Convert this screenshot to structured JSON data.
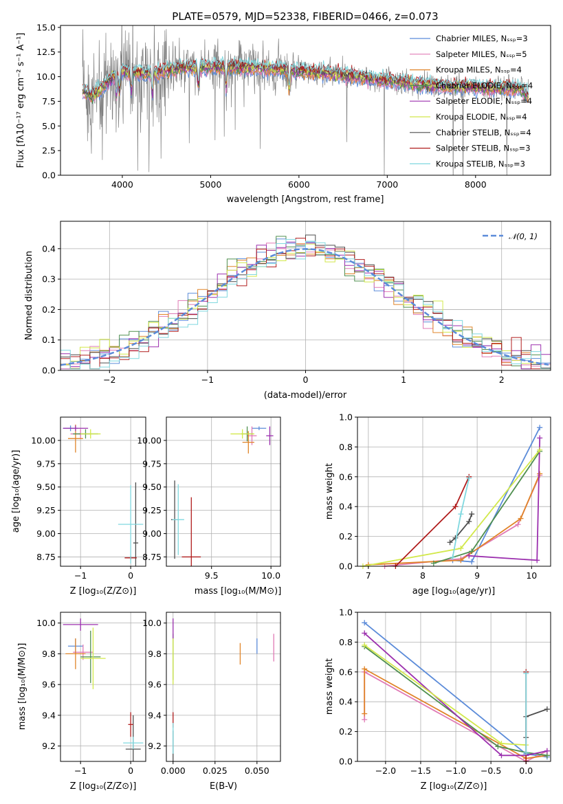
{
  "palette": {
    "chabrier_miles": "#5b8bd9",
    "salpeter_miles": "#e07ab5",
    "kroupa_miles": "#e08428",
    "chabrier_elodie": "#4f8f4f",
    "salpeter_elodie": "#9b2fae",
    "kroupa_elodie": "#d2e84a",
    "chabrier_stelib": "#4d4d4d",
    "salpeter_stelib": "#b01c1c",
    "kroupa_stelib": "#7fd8df",
    "gaussian": "#5b8bd9"
  },
  "chart_data": [
    {
      "id": "spectrum",
      "type": "line",
      "title": "PLATE=0579, MJD=52338, FIBERID=0466, z=0.073",
      "xlabel": "wavelength [Angstrom, rest frame]",
      "ylabel": "Flux [fλ10⁻¹⁷ erg cm⁻² s⁻¹ A⁻¹]",
      "xlim": [
        3300,
        8850
      ],
      "ylim": [
        0,
        15.2
      ],
      "xticks": [
        "4000",
        "5000",
        "6000",
        "7000",
        "8000"
      ],
      "yticks": [
        "0.0",
        "2.5",
        "5.0",
        "7.5",
        "10.0",
        "12.5",
        "15.0"
      ],
      "grid": false,
      "legend_position": "top-right",
      "legend": [
        "Chabrier MILES, Nₛₛₚ=3",
        "Salpeter MILES, Nₛₛₚ=5",
        "Kroupa MILES, Nₛₛₚ=4",
        "Chabrier ELODIE, Nₛₛₚ=4",
        "Salpeter ELODIE, Nₛₛₚ=4",
        "Kroupa ELODIE, Nₛₛₚ=4",
        "Chabrier STELIB, Nₛₛₚ=4",
        "Salpeter STELIB, Nₛₛₚ=3",
        "Kroupa STELIB, Nₛₛₚ=3"
      ],
      "continuum": [
        [
          3550,
          8.6
        ],
        [
          3650,
          8.0
        ],
        [
          3800,
          9.2
        ],
        [
          4000,
          10.6
        ],
        [
          4300,
          10.3
        ],
        [
          4700,
          10.9
        ],
        [
          5100,
          11.0
        ],
        [
          5500,
          10.9
        ],
        [
          6000,
          10.6
        ],
        [
          6500,
          10.2
        ],
        [
          7000,
          9.6
        ],
        [
          7500,
          9.1
        ],
        [
          8000,
          8.9
        ],
        [
          8500,
          8.8
        ],
        [
          8600,
          8.0
        ]
      ],
      "absorption_lines": [
        3934,
        3969,
        4102,
        4340,
        4861,
        5175,
        5890
      ]
    },
    {
      "id": "residuals",
      "type": "line",
      "xlabel": "(data-model)/error",
      "ylabel": "Normed distribution",
      "xlim": [
        -2.5,
        2.5
      ],
      "ylim": [
        0,
        0.49
      ],
      "xticks": [
        "−2",
        "−1",
        "0",
        "1",
        "2"
      ],
      "yticks": [
        "0.0",
        "0.1",
        "0.2",
        "0.3",
        "0.4"
      ],
      "grid": true,
      "legend_position": "top-right",
      "legend": [
        "𝒩(0, 1)"
      ],
      "gaussian": {
        "mean": 0,
        "sigma": 1
      }
    },
    {
      "id": "age_vs_Z",
      "type": "scatter",
      "xlabel": "Z [log₁₀(Z/Z⊙)]",
      "ylabel": "age  [log₁₀(age/yr)]",
      "xlim": [
        -1.4,
        0.3
      ],
      "ylim": [
        8.65,
        10.25
      ],
      "xticks": [
        "−1",
        "0"
      ],
      "yticks": [
        "8.75",
        "9.00",
        "9.25",
        "9.50",
        "9.75",
        "10.00"
      ],
      "grid": true,
      "points": [
        {
          "c": "chabrier_miles",
          "x": -1.2,
          "y": 10.13,
          "xe": 0.15,
          "ye": 0.03
        },
        {
          "c": "salpeter_miles",
          "x": -1.0,
          "y": 10.07,
          "xe": 0.2,
          "ye": 0.05
        },
        {
          "c": "kroupa_miles",
          "x": -1.1,
          "y": 10.02,
          "xe": 0.15,
          "ye": 0.15
        },
        {
          "c": "chabrier_elodie",
          "x": -0.9,
          "y": 10.07,
          "xe": 0.25,
          "ye": 0.05
        },
        {
          "c": "salpeter_elodie",
          "x": -1.1,
          "y": 10.13,
          "xe": 0.25,
          "ye": 0.03
        },
        {
          "c": "kroupa_elodie",
          "x": -0.8,
          "y": 10.07,
          "xe": 0.2,
          "ye": 0.05
        },
        {
          "c": "chabrier_stelib",
          "x": 0.1,
          "y": 8.9,
          "xe": 0.05,
          "ye": 0.65
        },
        {
          "c": "salpeter_stelib",
          "x": 0.0,
          "y": 8.74,
          "xe": 0.12,
          "ye": 0.02
        },
        {
          "c": "kroupa_stelib",
          "x": 0.0,
          "y": 9.1,
          "xe": 0.25,
          "ye": 0.42
        }
      ]
    },
    {
      "id": "age_vs_mass",
      "type": "scatter",
      "xlabel": "mass [log₁₀(M/M⊙)]",
      "ylabel": "",
      "xlim": [
        9.12,
        10.08
      ],
      "ylim": [
        8.65,
        10.25
      ],
      "xticks": [
        "9.5",
        "10.0"
      ],
      "yticks": [
        "8.75",
        "9.00",
        "9.25",
        "9.50",
        "9.75",
        "10.00"
      ],
      "grid": true,
      "points": [
        {
          "c": "chabrier_miles",
          "x": 9.9,
          "y": 10.13,
          "xe": 0.06,
          "ye": 0.02
        },
        {
          "c": "salpeter_miles",
          "x": 9.84,
          "y": 10.05,
          "xe": 0.04,
          "ye": 0.1
        },
        {
          "c": "kroupa_miles",
          "x": 9.81,
          "y": 9.98,
          "xe": 0.05,
          "ye": 0.12
        },
        {
          "c": "chabrier_elodie",
          "x": 9.8,
          "y": 10.07,
          "xe": 0.05,
          "ye": 0.08
        },
        {
          "c": "salpeter_elodie",
          "x": 9.99,
          "y": 10.05,
          "xe": 0.03,
          "ye": 0.1
        },
        {
          "c": "kroupa_elodie",
          "x": 9.76,
          "y": 10.07,
          "xe": 0.1,
          "ye": 0.05
        },
        {
          "c": "chabrier_stelib",
          "x": 9.19,
          "y": 9.15,
          "xe": 0.03,
          "ye": 0.42
        },
        {
          "c": "salpeter_stelib",
          "x": 9.33,
          "y": 8.75,
          "xe": 0.08,
          "ye": 0.64
        },
        {
          "c": "kroupa_stelib",
          "x": 9.22,
          "y": 9.15,
          "xe": 0.05,
          "ye": 0.38
        }
      ]
    },
    {
      "id": "mass_weight_vs_age",
      "type": "line",
      "xlabel": "age  [log₁₀(age/yr)]",
      "ylabel": "mass weight",
      "xlim": [
        6.8,
        10.35
      ],
      "ylim": [
        0,
        1
      ],
      "xticks": [
        "7",
        "8",
        "9",
        "10"
      ],
      "yticks": [
        "0.0",
        "0.2",
        "0.4",
        "0.6",
        "0.8",
        "1.0"
      ],
      "grid": true,
      "series": [
        {
          "c": "chabrier_miles",
          "x": [
            8.55,
            8.9,
            10.15
          ],
          "y": [
            0.04,
            0.03,
            0.93
          ]
        },
        {
          "c": "salpeter_miles",
          "x": [
            7.3,
            8.7,
            9.75,
            10.15
          ],
          "y": [
            0.0,
            0.05,
            0.28,
            0.61
          ]
        },
        {
          "c": "kroupa_miles",
          "x": [
            7.0,
            8.7,
            9.8,
            10.15
          ],
          "y": [
            0.01,
            0.04,
            0.32,
            0.62
          ]
        },
        {
          "c": "chabrier_elodie",
          "x": [
            8.2,
            8.9,
            10.15
          ],
          "y": [
            0.02,
            0.1,
            0.77
          ]
        },
        {
          "c": "salpeter_elodie",
          "x": [
            8.85,
            10.1,
            10.15
          ],
          "y": [
            0.07,
            0.04,
            0.86
          ]
        },
        {
          "c": "kroupa_elodie",
          "x": [
            6.9,
            8.7,
            10.15
          ],
          "y": [
            0.0,
            0.12,
            0.78
          ]
        },
        {
          "c": "chabrier_stelib",
          "x": [
            8.5,
            8.6,
            8.85,
            8.9
          ],
          "y": [
            0.16,
            0.19,
            0.3,
            0.35
          ]
        },
        {
          "c": "salpeter_stelib",
          "x": [
            7.5,
            8.6,
            8.85
          ],
          "y": [
            0.0,
            0.4,
            0.6
          ]
        },
        {
          "c": "kroupa_stelib",
          "x": [
            8.55,
            8.7,
            8.85
          ],
          "y": [
            0.06,
            0.35,
            0.59
          ]
        }
      ]
    },
    {
      "id": "mass_vs_Z",
      "type": "scatter",
      "xlabel": "Z [log₁₀(Z/Z⊙)]",
      "ylabel": "mass [log₁₀(M/M⊙)]",
      "xlim": [
        -1.4,
        0.3
      ],
      "ylim": [
        9.1,
        10.07
      ],
      "xticks": [
        "−1",
        "0"
      ],
      "yticks": [
        "9.2",
        "9.4",
        "9.6",
        "9.8",
        "10.0"
      ],
      "grid": true,
      "points": [
        {
          "c": "chabrier_miles",
          "x": -1.1,
          "y": 9.85,
          "xe": 0.15,
          "ye": 0.05
        },
        {
          "c": "salpeter_miles",
          "x": -0.95,
          "y": 9.81,
          "xe": 0.2,
          "ye": 0.05
        },
        {
          "c": "kroupa_miles",
          "x": -1.1,
          "y": 9.8,
          "xe": 0.2,
          "ye": 0.1
        },
        {
          "c": "chabrier_elodie",
          "x": -0.8,
          "y": 9.78,
          "xe": 0.2,
          "ye": 0.17
        },
        {
          "c": "salpeter_elodie",
          "x": -1.0,
          "y": 9.99,
          "xe": 0.35,
          "ye": 0.04
        },
        {
          "c": "kroupa_elodie",
          "x": -0.75,
          "y": 9.77,
          "xe": 0.25,
          "ye": 0.2
        },
        {
          "c": "chabrier_stelib",
          "x": 0.05,
          "y": 9.18,
          "xe": 0.15,
          "ye": 0.22
        },
        {
          "c": "salpeter_stelib",
          "x": 0.0,
          "y": 9.34,
          "xe": 0.05,
          "ye": 0.08
        },
        {
          "c": "kroupa_stelib",
          "x": 0.05,
          "y": 9.22,
          "xe": 0.2,
          "ye": 0.04
        }
      ]
    },
    {
      "id": "mass_vs_ebv",
      "type": "scatter",
      "xlabel": "E(B-V)",
      "ylabel": "",
      "xlim": [
        -0.004,
        0.064
      ],
      "ylim": [
        9.1,
        10.07
      ],
      "xticks": [
        "0.000",
        "0.025",
        "0.050"
      ],
      "yticks": [
        "9.2",
        "9.4",
        "9.6",
        "9.8",
        "10.0"
      ],
      "grid": true,
      "points": [
        {
          "c": "chabrier_miles",
          "x": 0.05,
          "y": 9.85,
          "xe": 0,
          "ye": 0.05
        },
        {
          "c": "salpeter_miles",
          "x": 0.06,
          "y": 9.84,
          "xe": 0,
          "ye": 0.09
        },
        {
          "c": "kroupa_miles",
          "x": 0.04,
          "y": 9.8,
          "xe": 0,
          "ye": 0.07
        },
        {
          "c": "chabrier_elodie",
          "x": 0.0,
          "y": 9.78,
          "xe": 0,
          "ye": 0.15
        },
        {
          "c": "salpeter_elodie",
          "x": 0.0,
          "y": 9.96,
          "xe": 0,
          "ye": 0.07
        },
        {
          "c": "kroupa_elodie",
          "x": 0.0,
          "y": 9.75,
          "xe": 0,
          "ye": 0.15
        },
        {
          "c": "chabrier_stelib",
          "x": 0.0,
          "y": 9.2,
          "xe": 0,
          "ye": 0.1
        },
        {
          "c": "salpeter_stelib",
          "x": 0.0,
          "y": 9.37,
          "xe": 0,
          "ye": 0.05
        },
        {
          "c": "kroupa_stelib",
          "x": 0.0,
          "y": 9.25,
          "xe": 0,
          "ye": 0.1
        }
      ]
    },
    {
      "id": "mass_weight_vs_Z",
      "type": "line",
      "xlabel": "Z [log₁₀(Z/Z⊙)]",
      "ylabel": "mass weight",
      "xlim": [
        -2.4,
        0.35
      ],
      "ylim": [
        0,
        1
      ],
      "xticks": [
        "−2.0",
        "−1.5",
        "−1.0",
        "−0.5",
        "0.0"
      ],
      "yticks": [
        "0.0",
        "0.2",
        "0.4",
        "0.6",
        "0.8",
        "1.0"
      ],
      "grid": true,
      "series": [
        {
          "c": "chabrier_miles",
          "x": [
            -2.3,
            0.0,
            0.3
          ],
          "y": [
            0.93,
            0.05,
            0.03
          ]
        },
        {
          "c": "salpeter_miles",
          "x": [
            -2.3,
            -2.3,
            0.0,
            0.3
          ],
          "y": [
            0.28,
            0.6,
            0.0,
            0.07
          ]
        },
        {
          "c": "kroupa_miles",
          "x": [
            -2.3,
            -2.3,
            0.0,
            0.3
          ],
          "y": [
            0.32,
            0.62,
            0.02,
            0.04
          ]
        },
        {
          "c": "chabrier_elodie",
          "x": [
            -2.3,
            -0.4,
            0.0,
            0.3
          ],
          "y": [
            0.77,
            0.1,
            0.06,
            0.04
          ]
        },
        {
          "c": "salpeter_elodie",
          "x": [
            -2.3,
            -0.35,
            0.0,
            0.3
          ],
          "y": [
            0.86,
            0.04,
            0.04,
            0.07
          ]
        },
        {
          "c": "kroupa_elodie",
          "x": [
            -2.3,
            -0.35,
            0.0
          ],
          "y": [
            0.78,
            0.12,
            0.11
          ]
        },
        {
          "c": "chabrier_stelib",
          "x": [
            0.0,
            0.0,
            0.3
          ],
          "y": [
            0.16,
            0.3,
            0.35
          ]
        },
        {
          "c": "salpeter_stelib",
          "x": [
            0.0,
            0.0
          ],
          "y": [
            0.0,
            0.6
          ]
        },
        {
          "c": "kroupa_stelib",
          "x": [
            0.0,
            0.0
          ],
          "y": [
            0.06,
            0.59
          ]
        }
      ]
    }
  ]
}
